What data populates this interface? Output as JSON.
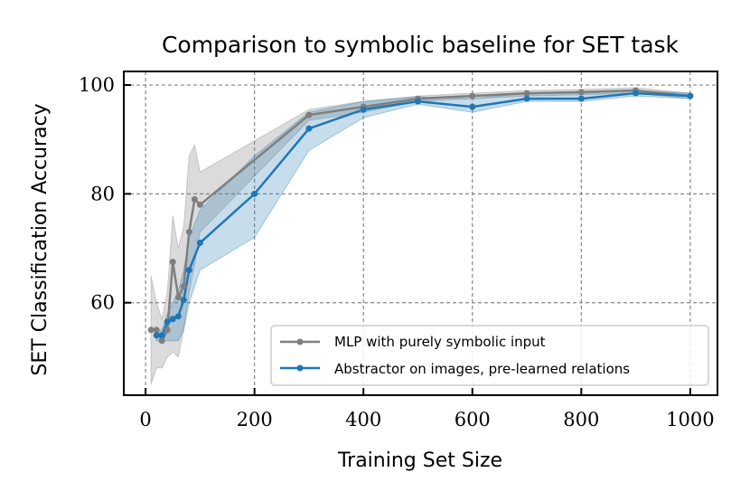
{
  "chart_data": {
    "type": "line",
    "title": "Comparison to symbolic baseline for SET task",
    "xlabel": "Training Set Size",
    "ylabel": "SET Classification Accuracy",
    "xlim": [
      -40,
      1050
    ],
    "ylim": [
      43,
      102.5
    ],
    "xticks": [
      0,
      200,
      400,
      600,
      800,
      1000
    ],
    "yticks": [
      60,
      80,
      100
    ],
    "xtick_labels": [
      "0",
      "200",
      "400",
      "600",
      "800",
      "1000"
    ],
    "ytick_labels": [
      "60",
      "80",
      "100"
    ],
    "grid": true,
    "legend_position": "lower-right",
    "series": [
      {
        "name": "MLP with purely symbolic input",
        "color": "#7f7f7f",
        "x": [
          10,
          20,
          30,
          40,
          50,
          60,
          70,
          80,
          90,
          100,
          300,
          400,
          500,
          600,
          700,
          800,
          900,
          1000
        ],
        "y": [
          55,
          55,
          53,
          55,
          67.5,
          61,
          63,
          73,
          79,
          78,
          94.5,
          96,
          97.5,
          98,
          98.5,
          98.7,
          99,
          98
        ],
        "lower": [
          45,
          48,
          48,
          50,
          51,
          50,
          55,
          62,
          67,
          73,
          93.5,
          95,
          97,
          97.5,
          98,
          98.2,
          98.5,
          97.5
        ],
        "upper": [
          65,
          60,
          57,
          62,
          76,
          70,
          74,
          87,
          89,
          84,
          95.5,
          97,
          98,
          98.5,
          99,
          99.2,
          99.5,
          98.5
        ]
      },
      {
        "name": "Abstractor on images, pre-learned relations",
        "color": "#1f77b4",
        "x": [
          20,
          30,
          40,
          50,
          60,
          70,
          80,
          100,
          200,
          300,
          400,
          500,
          600,
          700,
          800,
          900,
          1000
        ],
        "y": [
          54,
          54,
          56.5,
          57,
          57.5,
          60.5,
          66,
          71,
          80,
          92,
          95.5,
          97,
          96,
          97.5,
          97.5,
          98.5,
          98
        ],
        "lower": [
          53,
          53,
          53,
          53,
          53,
          55,
          60,
          66,
          72,
          88,
          94,
          96.5,
          95,
          97,
          97,
          98,
          97.5
        ],
        "upper": [
          55,
          55,
          58,
          60,
          62,
          66,
          72,
          77,
          87,
          95,
          97,
          97.8,
          97.5,
          98.5,
          98.5,
          99,
          98.5
        ]
      }
    ]
  }
}
